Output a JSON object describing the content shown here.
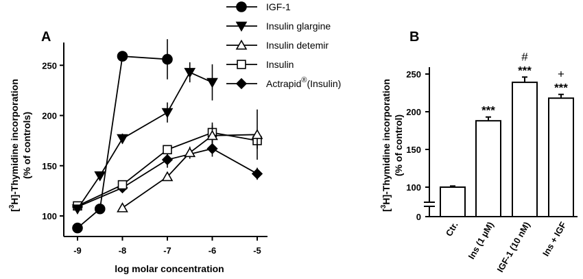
{
  "chart_data": [
    {
      "panel": "A",
      "type": "line",
      "xlabel": "log molar concentration",
      "ylabel_pre": "[",
      "ylabel_sup": "3",
      "ylabel_post": "H]-Thymidine incorporation",
      "ylabel_line2": "(% of controls)",
      "ylim": [
        85,
        275
      ],
      "xlim": [
        -9.25,
        -4.75
      ],
      "xticks": [
        -9,
        -8,
        -7,
        -6,
        -5
      ],
      "xtick_labels": [
        "-9",
        "-8",
        "-7",
        "-6",
        "-5"
      ],
      "yticks": [
        100,
        150,
        200,
        250
      ],
      "ytick_labels": [
        "100",
        "150",
        "200",
        "250"
      ],
      "legend_placement": "top-center",
      "series": [
        {
          "name": "IGF-1",
          "marker": "circle-filled",
          "x": [
            -9,
            -8.5,
            -8,
            -7
          ],
          "y": [
            88,
            107,
            259,
            256
          ],
          "err": [
            0,
            0,
            5,
            20
          ]
        },
        {
          "name": "Insulin glargine",
          "marker": "triangle-down-filled",
          "x": [
            -9,
            -8.5,
            -8,
            -7,
            -6.5,
            -6
          ],
          "y": [
            107,
            140,
            177,
            203,
            243,
            233
          ],
          "err": [
            0,
            0,
            5,
            10,
            10,
            18
          ]
        },
        {
          "name": "Insulin detemir",
          "marker": "triangle-up-open",
          "x": [
            -8,
            -7,
            -6.5,
            -6,
            -5
          ],
          "y": [
            108,
            139,
            163,
            180,
            181
          ],
          "err": [
            0,
            0,
            6,
            10,
            25
          ]
        },
        {
          "name": "Insulin",
          "marker": "square-open",
          "x": [
            -9,
            -8,
            -7,
            -6,
            -5
          ],
          "y": [
            110,
            131,
            166,
            183,
            175
          ],
          "err": [
            0,
            0,
            0,
            10,
            8
          ]
        },
        {
          "name": "Actrapid",
          "legend_sup": "®",
          "legend_suffix": "(Insulin)",
          "marker": "diamond-filled",
          "x": [
            -9,
            -8,
            -7,
            -6,
            -5
          ],
          "y": [
            109,
            128,
            156,
            167,
            142
          ],
          "err": [
            0,
            0,
            8,
            8,
            6
          ]
        }
      ]
    },
    {
      "panel": "B",
      "type": "bar",
      "ylabel_pre": "[",
      "ylabel_sup": "3",
      "ylabel_post": "H]-Thymidine incorporation",
      "ylabel_line2": "(% of control)",
      "axis_break": true,
      "ylim": [
        90,
        255
      ],
      "lower_ticks": [
        0
      ],
      "yticks": [
        100,
        150,
        200,
        250
      ],
      "ytick_labels": [
        "100",
        "150",
        "200",
        "250"
      ],
      "categories": [
        "Ctr.",
        "Ins (1 µM)",
        "IGF-1 (10 nM)",
        "Ins + IGF"
      ],
      "values": [
        100,
        188,
        239,
        218
      ],
      "errors": [
        1.5,
        5,
        7,
        5
      ],
      "significance": [
        "",
        "***",
        "***",
        "***"
      ],
      "symbols": [
        "",
        "",
        "#",
        "+"
      ]
    }
  ]
}
